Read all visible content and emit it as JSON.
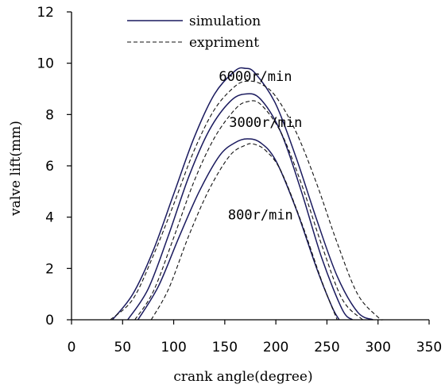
{
  "chart_data": {
    "type": "line",
    "title": "",
    "xlabel": "crank angle(degree)",
    "ylabel": "valve lift(mm)",
    "xlim": [
      0,
      350
    ],
    "ylim": [
      0,
      12
    ],
    "xticks": [
      "0",
      "50",
      "100",
      "150",
      "200",
      "250",
      "300",
      "350"
    ],
    "yticks": [
      "0",
      "2",
      "4",
      "6",
      "8",
      "10",
      "12"
    ],
    "grid": false,
    "legend_position": "top-center",
    "legend": [
      {
        "label": "simulation",
        "style": "solid"
      },
      {
        "label": "expriment",
        "style": "dashed"
      }
    ],
    "annotations": [
      {
        "text": "6000r/min",
        "x": 180,
        "y": 9.5
      },
      {
        "text": "3000r/min",
        "x": 190,
        "y": 7.7
      },
      {
        "text": "800r/min",
        "x": 185,
        "y": 4.1
      }
    ],
    "line_color": "#1a1a5e",
    "series": [
      {
        "name": "simulation",
        "group": "6000r/min",
        "style": "solid",
        "x": [
          40,
          60,
          80,
          100,
          120,
          140,
          160,
          170,
          180,
          200,
          220,
          240,
          260,
          280,
          295
        ],
        "y": [
          0,
          1.0,
          2.7,
          4.9,
          7.1,
          8.8,
          9.7,
          9.8,
          9.6,
          8.4,
          6.3,
          3.9,
          1.7,
          0.3,
          0
        ]
      },
      {
        "name": "expriment",
        "group": "6000r/min",
        "style": "dashed",
        "x": [
          38,
          60,
          80,
          100,
          120,
          140,
          160,
          172,
          185,
          200,
          220,
          240,
          260,
          280,
          300,
          305
        ],
        "y": [
          0,
          0.8,
          2.5,
          4.5,
          6.6,
          8.2,
          9.1,
          9.3,
          9.2,
          8.7,
          7.3,
          5.3,
          3.0,
          1.0,
          0.1,
          0
        ]
      },
      {
        "name": "simulation",
        "group": "3000r/min",
        "style": "solid",
        "x": [
          55,
          75,
          95,
          115,
          135,
          155,
          170,
          185,
          205,
          225,
          245,
          265,
          275
        ],
        "y": [
          0,
          1.2,
          3.3,
          5.6,
          7.4,
          8.5,
          8.8,
          8.6,
          7.3,
          5.0,
          2.4,
          0.4,
          0
        ]
      },
      {
        "name": "expriment",
        "group": "3000r/min",
        "style": "dashed",
        "x": [
          62,
          80,
          100,
          120,
          140,
          160,
          172,
          185,
          205,
          225,
          245,
          265,
          285
        ],
        "y": [
          0,
          1.1,
          3.2,
          5.4,
          7.1,
          8.2,
          8.5,
          8.4,
          7.3,
          5.3,
          2.9,
          0.8,
          0
        ]
      },
      {
        "name": "simulation",
        "group": "800r/min",
        "style": "solid",
        "x": [
          65,
          85,
          105,
          125,
          145,
          160,
          172,
          185,
          200,
          220,
          240,
          255,
          262
        ],
        "y": [
          0,
          1.3,
          3.2,
          5.0,
          6.4,
          6.9,
          7.05,
          6.9,
          6.2,
          4.3,
          2.0,
          0.5,
          0
        ]
      },
      {
        "name": "expriment",
        "group": "800r/min",
        "style": "dashed",
        "x": [
          78,
          95,
          115,
          135,
          155,
          170,
          178,
          190,
          205,
          225,
          245,
          260
        ],
        "y": [
          0,
          1.2,
          3.3,
          5.1,
          6.4,
          6.8,
          6.85,
          6.6,
          5.8,
          3.8,
          1.5,
          0
        ]
      }
    ]
  }
}
